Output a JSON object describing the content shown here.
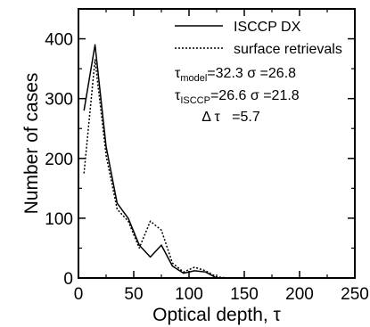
{
  "chart_data": {
    "type": "line",
    "xlabel": "Optical depth, τ",
    "ylabel": "Number of cases",
    "xlim": [
      0,
      250
    ],
    "ylim": [
      0,
      450
    ],
    "x_ticks": [
      0,
      50,
      100,
      150,
      200,
      250
    ],
    "y_ticks": [
      0,
      100,
      200,
      300,
      400
    ],
    "grid": false,
    "legend_position": "top-right",
    "series": [
      {
        "name": "ISCCP DX",
        "style": "solid",
        "x": [
          5,
          15,
          25,
          35,
          45,
          55,
          65,
          75,
          85,
          95,
          105,
          115,
          125,
          135,
          145
        ],
        "y": [
          280,
          390,
          220,
          125,
          100,
          55,
          35,
          55,
          20,
          8,
          12,
          10,
          0,
          0,
          0
        ]
      },
      {
        "name": "surface retrievals",
        "style": "dotted",
        "x": [
          5,
          15,
          25,
          35,
          45,
          55,
          65,
          75,
          85,
          95,
          105,
          115,
          125,
          135,
          145
        ],
        "y": [
          175,
          365,
          205,
          115,
          95,
          50,
          95,
          80,
          25,
          10,
          18,
          12,
          2,
          0,
          0
        ]
      }
    ],
    "annotations": [
      {
        "main": "τ",
        "sub": "model",
        "rest": "=32.3  σ =26.8"
      },
      {
        "main": "τ",
        "sub": "ISCCP",
        "rest": "=26.6  σ =21.8"
      },
      {
        "main": "Δ τ",
        "sub": "",
        "rest": "   =5.7"
      }
    ]
  }
}
